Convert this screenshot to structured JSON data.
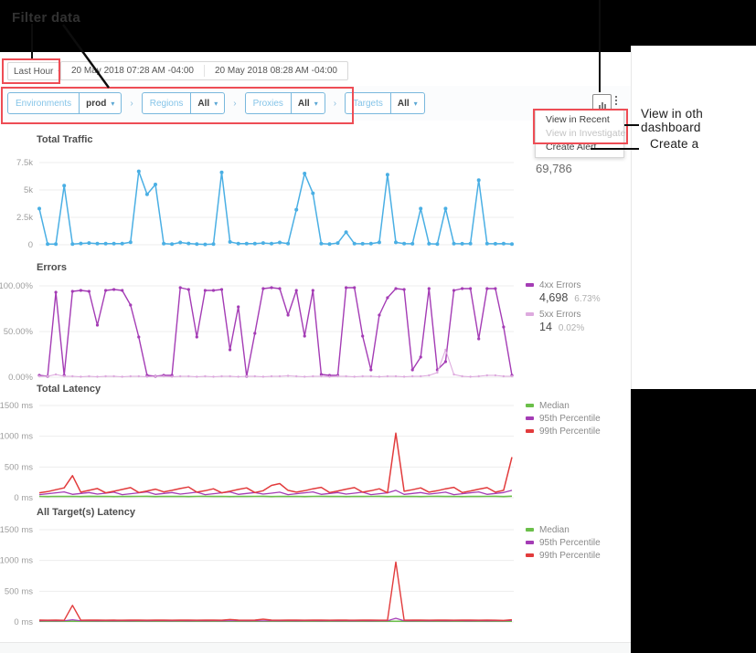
{
  "annotations": {
    "filter_data": "Filter data",
    "view_in_other_line1": "View in oth",
    "view_in_other_line2": "dashboard",
    "create_alert_note": "Create a"
  },
  "topbar": {
    "time_range": "Last Hour",
    "date_start": "20 May 2018 07:28 AM -04:00",
    "date_end": "20 May 2018 08:28 AM -04:00"
  },
  "filter_bar": {
    "filters": [
      {
        "label": "Environments",
        "value": "prod"
      },
      {
        "label": "Regions",
        "value": "All"
      },
      {
        "label": "Proxies",
        "value": "All"
      },
      {
        "label": "Targets",
        "value": "All"
      }
    ]
  },
  "context_menu": {
    "items": [
      {
        "label": "View in Recent",
        "enabled": true
      },
      {
        "label": "View in Investigate",
        "enabled": false
      },
      {
        "label": "Create Alert",
        "enabled": true
      }
    ]
  },
  "icons": {
    "chart_button": "bar-chart-icon",
    "more_button": "kebab-menu-icon"
  },
  "colors": {
    "traffic": "#4aafe4",
    "errors_4xx": "#a43cb5",
    "errors_5xx": "#ddaade",
    "median": "#6bbf4a",
    "p95": "#a43cb5",
    "p99": "#e23b3c",
    "annotation_red": "#ee4d55"
  },
  "traffic_total": "69,786",
  "chart_data": [
    {
      "type": "line",
      "title": "Total Traffic",
      "ylabel": "",
      "ylim": [
        0,
        7500
      ],
      "grid": true,
      "yticks": [
        {
          "label": "7.5k",
          "value": 7500
        },
        {
          "label": "5k",
          "value": 5000
        },
        {
          "label": "2.5k",
          "value": 2500
        },
        {
          "label": "0",
          "value": 0
        }
      ],
      "series": [
        {
          "name": "Traffic",
          "color": "#4aafe4",
          "width": 1.5,
          "marker": 2,
          "values": [
            3300,
            60,
            60,
            5400,
            60,
            120,
            160,
            110,
            100,
            110,
            100,
            230,
            6700,
            4600,
            5500,
            100,
            60,
            210,
            120,
            70,
            30,
            70,
            6600,
            260,
            110,
            100,
            110,
            160,
            100,
            210,
            100,
            3200,
            6500,
            4700,
            100,
            60,
            160,
            1150,
            100,
            90,
            110,
            220,
            6400,
            220,
            110,
            90,
            3300,
            90,
            70,
            3300,
            110,
            90,
            100,
            5900,
            100,
            90,
            110,
            60
          ]
        }
      ]
    },
    {
      "type": "line",
      "title": "Errors",
      "ylabel": "",
      "ylim": [
        0,
        100
      ],
      "grid": true,
      "yticks": [
        {
          "label": "100.00%",
          "value": 100
        },
        {
          "label": "50.00%",
          "value": 50
        },
        {
          "label": "0.00%",
          "value": 0
        }
      ],
      "legend": [
        {
          "label": "4xx Errors",
          "value": "4,698",
          "pct": "6.73%",
          "color": "#a43cb5"
        },
        {
          "label": "5xx Errors",
          "value": "14",
          "pct": "0.02%",
          "color": "#ddaade"
        }
      ],
      "series": [
        {
          "name": "4xx Errors",
          "color": "#a43cb5",
          "width": 1.4,
          "marker": 1.6,
          "values": [
            2,
            1,
            93,
            2,
            94,
            95,
            94,
            57,
            95,
            96,
            95,
            79,
            44,
            2,
            1,
            2,
            2,
            98,
            96,
            44,
            95,
            95,
            96,
            30,
            77,
            1,
            48,
            97,
            98,
            97,
            68,
            95,
            45,
            95,
            3,
            2,
            2,
            98,
            98,
            45,
            8,
            68,
            87,
            97,
            96,
            8,
            22,
            97,
            8,
            17,
            95,
            97,
            97,
            42,
            97,
            97,
            55,
            2
          ]
        },
        {
          "name": "5xx Errors",
          "color": "#ddaade",
          "width": 1.1,
          "marker": 1.2,
          "values": [
            1,
            1,
            3,
            1,
            1,
            0.5,
            1,
            0.5,
            1,
            1,
            0.5,
            1,
            1,
            0.5,
            1,
            1,
            0.5,
            1,
            1,
            0.5,
            1,
            0.5,
            1,
            1,
            0.5,
            1,
            1,
            0.5,
            1,
            1,
            1.5,
            1,
            0.5,
            1,
            1,
            0.5,
            1,
            1,
            0.5,
            1,
            1,
            0.5,
            1,
            1,
            0.5,
            1,
            1,
            2,
            5,
            30,
            3,
            1,
            0.5,
            1,
            2,
            2,
            1,
            1
          ]
        }
      ]
    },
    {
      "type": "line",
      "title": "Total Latency",
      "ylabel": "",
      "ylim": [
        0,
        1500
      ],
      "grid": true,
      "yticks": [
        {
          "label": "1500 ms",
          "value": 1500
        },
        {
          "label": "1000 ms",
          "value": 1000
        },
        {
          "label": "500 ms",
          "value": 500
        },
        {
          "label": "0 ms",
          "value": 0
        }
      ],
      "legend": [
        {
          "label": "Median",
          "color": "#6bbf4a"
        },
        {
          "label": "95th Percentile",
          "color": "#a43cb5"
        },
        {
          "label": "99th Percentile",
          "color": "#e23b3c"
        }
      ],
      "series": [
        {
          "name": "Median",
          "color": "#6bbf4a",
          "width": 1.6,
          "marker": 0,
          "values": [
            22,
            20,
            23,
            21,
            22,
            20,
            24,
            21,
            22,
            20,
            23,
            21,
            22,
            24,
            20,
            22,
            21,
            23,
            20,
            22,
            24,
            21,
            22,
            20,
            23,
            21,
            22,
            24,
            20,
            22,
            21,
            23,
            20,
            22,
            24,
            21,
            22,
            20,
            23,
            21,
            22,
            24,
            20,
            22,
            21,
            23,
            20,
            22,
            24,
            21,
            22,
            20,
            23,
            21,
            22,
            24,
            20,
            25
          ]
        },
        {
          "name": "95th Percentile",
          "color": "#a43cb5",
          "width": 1.3,
          "marker": 0,
          "values": [
            50,
            65,
            80,
            95,
            55,
            70,
            85,
            60,
            75,
            90,
            50,
            65,
            80,
            95,
            55,
            70,
            85,
            60,
            75,
            90,
            50,
            65,
            80,
            95,
            55,
            70,
            85,
            60,
            75,
            90,
            50,
            65,
            80,
            95,
            55,
            70,
            85,
            60,
            75,
            90,
            50,
            65,
            80,
            120,
            55,
            70,
            85,
            60,
            75,
            90,
            50,
            65,
            80,
            95,
            55,
            70,
            85,
            120
          ]
        },
        {
          "name": "99th Percentile",
          "color": "#e23b3c",
          "width": 1.5,
          "marker": 0,
          "values": [
            80,
            100,
            130,
            160,
            360,
            90,
            120,
            150,
            80,
            105,
            135,
            165,
            85,
            110,
            140,
            95,
            120,
            150,
            175,
            90,
            115,
            145,
            80,
            105,
            135,
            160,
            85,
            115,
            200,
            230,
            120,
            90,
            115,
            145,
            170,
            85,
            110,
            140,
            165,
            90,
            115,
            145,
            80,
            1050,
            105,
            130,
            160,
            90,
            115,
            145,
            170,
            85,
            110,
            140,
            165,
            90,
            120,
            660
          ]
        }
      ]
    },
    {
      "type": "line",
      "title": "All Target(s) Latency",
      "ylabel": "",
      "ylim": [
        0,
        1500
      ],
      "grid": true,
      "yticks": [
        {
          "label": "1500 ms",
          "value": 1500
        },
        {
          "label": "1000 ms",
          "value": 1000
        },
        {
          "label": "500 ms",
          "value": 500
        },
        {
          "label": "0 ms",
          "value": 0
        }
      ],
      "legend": [
        {
          "label": "Median",
          "color": "#6bbf4a"
        },
        {
          "label": "95th Percentile",
          "color": "#a43cb5"
        },
        {
          "label": "99th Percentile",
          "color": "#e23b3c"
        }
      ],
      "series": [
        {
          "name": "Median",
          "color": "#6bbf4a",
          "width": 1.5,
          "marker": 0,
          "values": [
            10,
            11,
            10,
            12,
            10,
            11,
            12,
            10,
            11,
            10,
            12,
            10,
            11,
            10,
            12,
            11,
            10,
            12,
            10,
            11,
            10,
            12,
            10,
            11,
            12,
            10,
            11,
            10,
            12,
            10,
            11,
            10,
            12,
            11,
            10,
            12,
            10,
            11,
            10,
            12,
            10,
            11,
            12,
            10,
            11,
            10,
            12,
            10,
            11,
            10,
            12,
            11,
            10,
            12,
            10,
            11,
            10,
            12
          ]
        },
        {
          "name": "95th Percentile",
          "color": "#a43cb5",
          "width": 1.2,
          "marker": 0,
          "values": [
            18,
            19,
            18,
            20,
            35,
            19,
            20,
            18,
            19,
            18,
            20,
            18,
            19,
            18,
            20,
            19,
            18,
            20,
            18,
            19,
            18,
            20,
            18,
            19,
            20,
            18,
            19,
            18,
            20,
            18,
            19,
            18,
            20,
            19,
            18,
            20,
            18,
            19,
            18,
            20,
            18,
            19,
            20,
            60,
            19,
            18,
            20,
            18,
            19,
            18,
            20,
            19,
            18,
            20,
            18,
            19,
            18,
            25
          ]
        },
        {
          "name": "99th Percentile",
          "color": "#e23b3c",
          "width": 1.4,
          "marker": 0,
          "values": [
            30,
            28,
            30,
            27,
            270,
            28,
            30,
            29,
            28,
            30,
            28,
            29,
            30,
            28,
            29,
            30,
            28,
            30,
            29,
            28,
            30,
            29,
            28,
            40,
            30,
            28,
            29,
            45,
            30,
            28,
            30,
            29,
            28,
            30,
            29,
            28,
            30,
            29,
            28,
            30,
            29,
            28,
            30,
            975,
            28,
            30,
            29,
            28,
            30,
            29,
            28,
            30,
            29,
            28,
            30,
            28,
            25,
            35
          ]
        }
      ]
    }
  ]
}
